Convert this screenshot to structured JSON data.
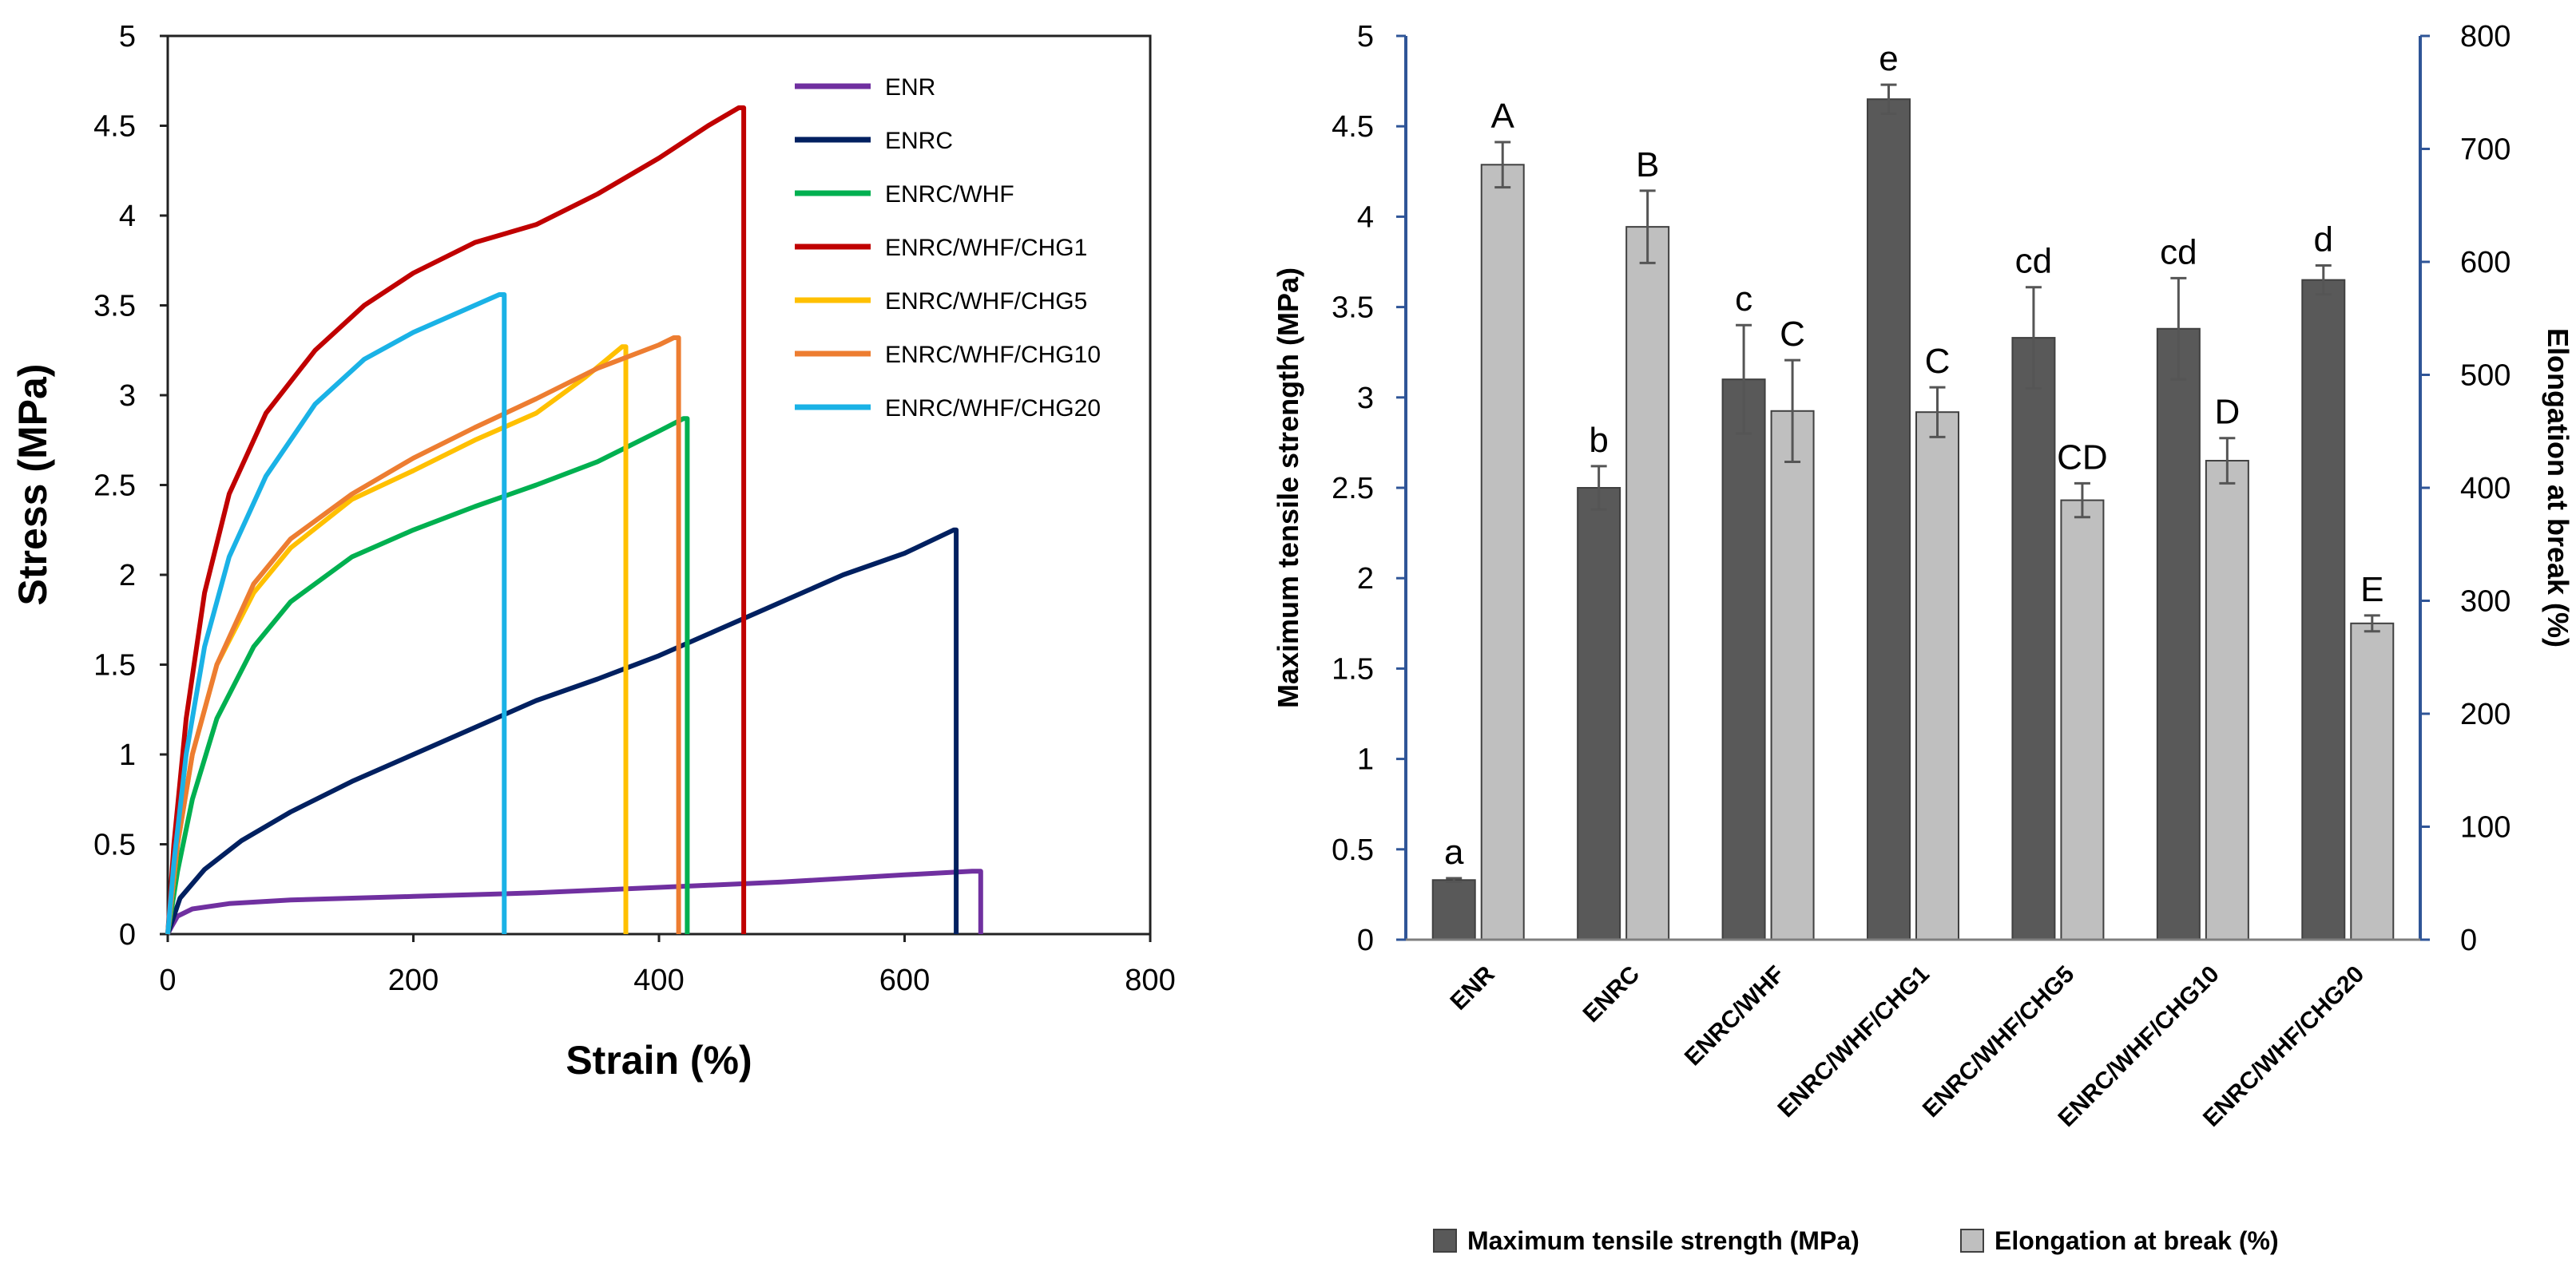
{
  "chart_data": [
    {
      "type": "line",
      "title": "",
      "xlabel": "Strain (%)",
      "ylabel": "Stress (MPa)",
      "xlim": [
        0,
        800
      ],
      "ylim": [
        0,
        5
      ],
      "x_ticks": [
        "0",
        "200",
        "400",
        "600",
        "800"
      ],
      "y_ticks": [
        "0",
        "0.5",
        "1",
        "1.5",
        "2",
        "2.5",
        "3",
        "3.5",
        "4",
        "4.5",
        "5"
      ],
      "grid": false,
      "legend_position": "top-right",
      "series": [
        {
          "name": "ENR",
          "color": "#7030A0",
          "points": [
            [
              0,
              0
            ],
            [
              3,
              0.04
            ],
            [
              8,
              0.1
            ],
            [
              20,
              0.14
            ],
            [
              50,
              0.17
            ],
            [
              100,
              0.19
            ],
            [
              200,
              0.21
            ],
            [
              300,
              0.23
            ],
            [
              400,
              0.26
            ],
            [
              500,
              0.29
            ],
            [
              600,
              0.33
            ],
            [
              655,
              0.35
            ],
            [
              662,
              0.35
            ],
            [
              662,
              0
            ]
          ]
        },
        {
          "name": "ENRC",
          "color": "#002060",
          "points": [
            [
              0,
              0
            ],
            [
              10,
              0.2
            ],
            [
              30,
              0.36
            ],
            [
              60,
              0.52
            ],
            [
              100,
              0.68
            ],
            [
              150,
              0.85
            ],
            [
              200,
              1.0
            ],
            [
              250,
              1.15
            ],
            [
              300,
              1.3
            ],
            [
              350,
              1.42
            ],
            [
              400,
              1.55
            ],
            [
              450,
              1.7
            ],
            [
              500,
              1.85
            ],
            [
              550,
              2.0
            ],
            [
              600,
              2.12
            ],
            [
              640,
              2.25
            ],
            [
              642,
              2.25
            ],
            [
              642,
              0
            ]
          ]
        },
        {
          "name": "ENRC/WHF",
          "color": "#00B050",
          "points": [
            [
              0,
              0
            ],
            [
              8,
              0.35
            ],
            [
              20,
              0.75
            ],
            [
              40,
              1.2
            ],
            [
              70,
              1.6
            ],
            [
              100,
              1.85
            ],
            [
              150,
              2.1
            ],
            [
              200,
              2.25
            ],
            [
              250,
              2.38
            ],
            [
              300,
              2.5
            ],
            [
              350,
              2.63
            ],
            [
              400,
              2.8
            ],
            [
              420,
              2.87
            ],
            [
              423,
              2.87
            ],
            [
              423,
              0
            ]
          ]
        },
        {
          "name": "ENRC/WHF/CHG1",
          "color": "#C00000",
          "points": [
            [
              0,
              0
            ],
            [
              5,
              0.5
            ],
            [
              15,
              1.2
            ],
            [
              30,
              1.9
            ],
            [
              50,
              2.45
            ],
            [
              80,
              2.9
            ],
            [
              120,
              3.25
            ],
            [
              160,
              3.5
            ],
            [
              200,
              3.68
            ],
            [
              250,
              3.85
            ],
            [
              300,
              3.95
            ],
            [
              350,
              4.12
            ],
            [
              400,
              4.32
            ],
            [
              440,
              4.5
            ],
            [
              465,
              4.6
            ],
            [
              469,
              4.6
            ],
            [
              469,
              0
            ]
          ]
        },
        {
          "name": "ENRC/WHF/CHG5",
          "color": "#FFC000",
          "points": [
            [
              0,
              0
            ],
            [
              8,
              0.5
            ],
            [
              20,
              1.0
            ],
            [
              40,
              1.5
            ],
            [
              70,
              1.9
            ],
            [
              100,
              2.15
            ],
            [
              150,
              2.42
            ],
            [
              200,
              2.58
            ],
            [
              250,
              2.75
            ],
            [
              300,
              2.9
            ],
            [
              340,
              3.1
            ],
            [
              370,
              3.27
            ],
            [
              373,
              3.27
            ],
            [
              373,
              0
            ]
          ]
        },
        {
          "name": "ENRC/WHF/CHG10",
          "color": "#ED7D31",
          "points": [
            [
              0,
              0
            ],
            [
              8,
              0.5
            ],
            [
              20,
              1.0
            ],
            [
              40,
              1.5
            ],
            [
              70,
              1.95
            ],
            [
              100,
              2.2
            ],
            [
              150,
              2.45
            ],
            [
              200,
              2.65
            ],
            [
              250,
              2.82
            ],
            [
              300,
              2.98
            ],
            [
              350,
              3.15
            ],
            [
              400,
              3.28
            ],
            [
              412,
              3.32
            ],
            [
              416,
              3.32
            ],
            [
              416,
              0
            ]
          ]
        },
        {
          "name": "ENRC/WHF/CHG20",
          "color": "#1AB2E6",
          "points": [
            [
              0,
              0
            ],
            [
              5,
              0.4
            ],
            [
              15,
              1.0
            ],
            [
              30,
              1.6
            ],
            [
              50,
              2.1
            ],
            [
              80,
              2.55
            ],
            [
              120,
              2.95
            ],
            [
              160,
              3.2
            ],
            [
              200,
              3.35
            ],
            [
              240,
              3.47
            ],
            [
              270,
              3.56
            ],
            [
              274,
              3.56
            ],
            [
              274,
              0
            ]
          ]
        }
      ]
    },
    {
      "type": "bar",
      "title": "",
      "xlabel": "",
      "ylabel": "Maximum tensile strength (MPa)",
      "y2label": "Elongation at break (%)",
      "ylim": [
        0,
        5
      ],
      "y2lim": [
        0,
        800
      ],
      "y_ticks": [
        "0",
        "0.5",
        "1",
        "1.5",
        "2",
        "2.5",
        "3",
        "3.5",
        "4",
        "4.5",
        "5"
      ],
      "y2_ticks": [
        "0",
        "100",
        "200",
        "300",
        "400",
        "500",
        "600",
        "700",
        "800"
      ],
      "categories": [
        "ENR",
        "ENRC",
        "ENRC/WHF",
        "ENRC/WHF/CHG1",
        "ENRC/WHF/CHG5",
        "ENRC/WHF/CHG10",
        "ENRC/WHF/CHG20"
      ],
      "legend_position": "bottom",
      "series": [
        {
          "name": "Maximum tensile strength (MPa)",
          "axis": "left",
          "color": "#595959",
          "values": [
            0.33,
            2.5,
            3.1,
            4.65,
            3.33,
            3.38,
            3.65
          ],
          "errors": [
            0.01,
            0.12,
            0.3,
            0.08,
            0.28,
            0.28,
            0.08
          ],
          "labels": [
            "a",
            "b",
            "c",
            "e",
            "cd",
            "cd",
            "d"
          ]
        },
        {
          "name": "Elongation at break (%)",
          "axis": "right",
          "color": "#BFBFBF",
          "values": [
            686,
            631,
            468,
            467,
            389,
            424,
            280
          ],
          "errors": [
            20,
            32,
            45,
            22,
            15,
            20,
            7
          ],
          "labels": [
            "A",
            "B",
            "C",
            "C",
            "CD",
            "D",
            "E"
          ]
        }
      ]
    }
  ]
}
